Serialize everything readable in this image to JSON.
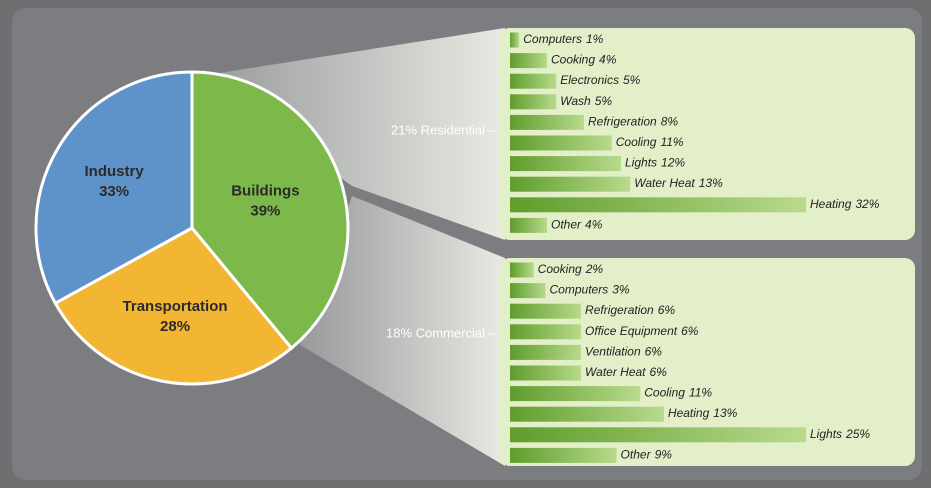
{
  "chart_data": [
    {
      "type": "pie",
      "categories": [
        "Buildings",
        "Transportation",
        "Industry"
      ],
      "values": [
        39,
        28,
        33
      ],
      "value_labels": [
        "39%",
        "28%",
        "33%"
      ],
      "colors": [
        "#7cb84a",
        "#f2b632",
        "#5e93c9"
      ]
    },
    {
      "type": "barh",
      "label": "21% Residential",
      "categories": [
        "Computers",
        "Cooking",
        "Electronics",
        "Wash",
        "Refrigeration",
        "Cooling",
        "Lights",
        "Water Heat",
        "Heating",
        "Other"
      ],
      "values": [
        1,
        4,
        5,
        5,
        8,
        11,
        12,
        13,
        32,
        4
      ],
      "value_labels": [
        "1%",
        "4%",
        "5%",
        "5%",
        "8%",
        "11%",
        "12%",
        "13%",
        "32%",
        "4%"
      ],
      "color": "#6aa634"
    },
    {
      "type": "barh",
      "label": "18% Commercial",
      "categories": [
        "Cooking",
        "Computers",
        "Refrigeration",
        "Office Equipment",
        "Ventilation",
        "Water Heat",
        "Cooling",
        "Heating",
        "Lights",
        "Other"
      ],
      "values": [
        2,
        3,
        6,
        6,
        6,
        6,
        11,
        13,
        25,
        9
      ],
      "value_labels": [
        "2%",
        "3%",
        "6%",
        "6%",
        "6%",
        "6%",
        "11%",
        "13%",
        "25%",
        "9%"
      ],
      "color": "#6aa634"
    }
  ]
}
